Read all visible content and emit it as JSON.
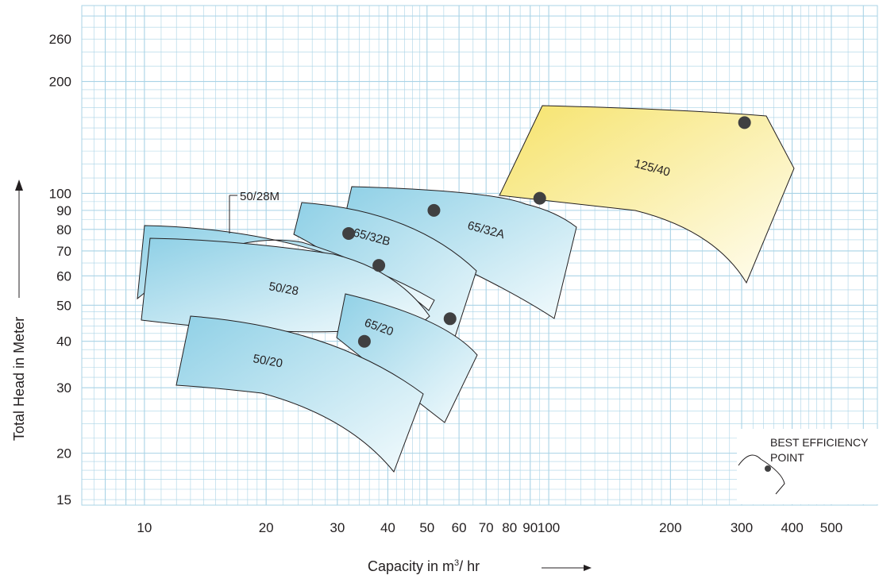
{
  "chart_data": {
    "type": "scatter",
    "title": "",
    "xlabel": "Capacity in m",
    "xlabel_sup": "3",
    "xlabel_suffix": "/ hr",
    "ylabel": "Total Head in Meter",
    "x_scale": "log",
    "y_scale": "log",
    "xlim": [
      7,
      650
    ],
    "ylim": [
      14.5,
      320
    ],
    "x_ticks": [
      {
        "value": 10,
        "label": "10"
      },
      {
        "value": 20,
        "label": "20"
      },
      {
        "value": 30,
        "label": "30"
      },
      {
        "value": 40,
        "label": "40"
      },
      {
        "value": 50,
        "label": "50"
      },
      {
        "value": 60,
        "label": "60"
      },
      {
        "value": 70,
        "label": "70"
      },
      {
        "value": 80,
        "label": "80"
      },
      {
        "value": 90,
        "label": "90"
      },
      {
        "value": 100,
        "label": "100"
      },
      {
        "value": 200,
        "label": "200"
      },
      {
        "value": 300,
        "label": "300"
      },
      {
        "value": 400,
        "label": "400"
      },
      {
        "value": 500,
        "label": "500"
      }
    ],
    "y_ticks": [
      {
        "value": 15,
        "label": "15"
      },
      {
        "value": 20,
        "label": "20"
      },
      {
        "value": 30,
        "label": "30"
      },
      {
        "value": 40,
        "label": "40"
      },
      {
        "value": 50,
        "label": "50"
      },
      {
        "value": 60,
        "label": "60"
      },
      {
        "value": 70,
        "label": "70"
      },
      {
        "value": 80,
        "label": "80"
      },
      {
        "value": 90,
        "label": "90"
      },
      {
        "value": 100,
        "label": "100"
      },
      {
        "value": 200,
        "label": "200"
      },
      {
        "value": 260,
        "label": "260"
      }
    ],
    "grid": true,
    "colors": {
      "grid": "#a9d3e6",
      "blue_region": "#8fd0e6",
      "yellow_region": "#f6e36c",
      "point": "#404041",
      "outline": "#231f20"
    },
    "pump_models": [
      {
        "name": "50/28M",
        "best_efficiency_point": {
          "x": 32,
          "y": 78
        }
      },
      {
        "name": "50/28",
        "best_efficiency_point": {
          "x": 38,
          "y": 64
        }
      },
      {
        "name": "65/32B",
        "best_efficiency_point": {
          "x": 52,
          "y": 90
        }
      },
      {
        "name": "65/32A",
        "best_efficiency_point": {
          "x": 95,
          "y": 97
        }
      },
      {
        "name": "65/20",
        "best_efficiency_point": {
          "x": 57,
          "y": 46
        }
      },
      {
        "name": "50/20",
        "best_efficiency_point": {
          "x": 35,
          "y": 40
        }
      },
      {
        "name": "125/40",
        "best_efficiency_point": {
          "x": 305,
          "y": 155
        }
      }
    ],
    "legend": {
      "position": "bottom-right",
      "text_line1": "BEST EFFICIENCY",
      "text_line2": "POINT"
    }
  }
}
